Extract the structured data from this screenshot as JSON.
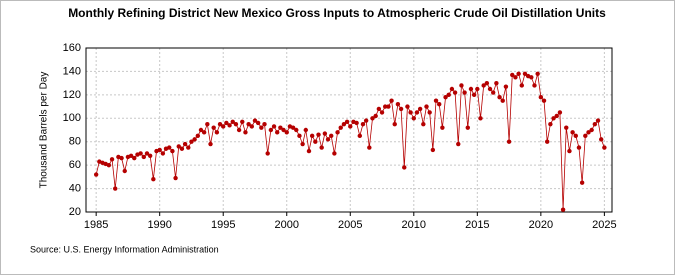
{
  "chart_data": {
    "type": "line",
    "title": "Monthly Refining District New Mexico Gross Inputs to Atmospheric Crude Oil Distillation Units",
    "y_label": "Thousand Barrels per Day",
    "source": "Source: U.S. Energy Information Administration",
    "x": [
      1985,
      1985.25,
      1985.5,
      1985.75,
      1986,
      1986.25,
      1986.5,
      1986.75,
      1987,
      1987.25,
      1987.5,
      1987.75,
      1988,
      1988.25,
      1988.5,
      1988.75,
      1989,
      1989.25,
      1989.5,
      1989.75,
      1990,
      1990.25,
      1990.5,
      1990.75,
      1991,
      1991.25,
      1991.5,
      1991.75,
      1992,
      1992.25,
      1992.5,
      1992.75,
      1993,
      1993.25,
      1993.5,
      1993.75,
      1994,
      1994.25,
      1994.5,
      1994.75,
      1995,
      1995.25,
      1995.5,
      1995.75,
      1996,
      1996.25,
      1996.5,
      1996.75,
      1997,
      1997.25,
      1997.5,
      1997.75,
      1998,
      1998.25,
      1998.5,
      1998.75,
      1999,
      1999.25,
      1999.5,
      1999.75,
      2000,
      2000.25,
      2000.5,
      2000.75,
      2001,
      2001.25,
      2001.5,
      2001.75,
      2002,
      2002.25,
      2002.5,
      2002.75,
      2003,
      2003.25,
      2003.5,
      2003.75,
      2004,
      2004.25,
      2004.5,
      2004.75,
      2005,
      2005.25,
      2005.5,
      2005.75,
      2006,
      2006.25,
      2006.5,
      2006.75,
      2007,
      2007.25,
      2007.5,
      2007.75,
      2008,
      2008.25,
      2008.5,
      2008.75,
      2009,
      2009.25,
      2009.5,
      2009.75,
      2010,
      2010.25,
      2010.5,
      2010.75,
      2011,
      2011.25,
      2011.5,
      2011.75,
      2012,
      2012.25,
      2012.5,
      2012.75,
      2013,
      2013.25,
      2013.5,
      2013.75,
      2014,
      2014.25,
      2014.5,
      2014.75,
      2015,
      2015.25,
      2015.5,
      2015.75,
      2016,
      2016.25,
      2016.5,
      2016.75,
      2017,
      2017.25,
      2017.5,
      2017.75,
      2018,
      2018.25,
      2018.5,
      2018.75,
      2019,
      2019.25,
      2019.5,
      2019.75,
      2020,
      2020.25,
      2020.5,
      2020.75,
      2021,
      2021.25,
      2021.5,
      2021.75,
      2022,
      2022.25,
      2022.5,
      2022.75,
      2023,
      2023.25,
      2023.5,
      2023.75,
      2024,
      2024.25,
      2024.5,
      2024.75,
      2025
    ],
    "series": [
      {
        "name": "New Mexico",
        "color": "#b50000",
        "values": [
          52,
          63,
          62,
          61,
          60,
          65,
          40,
          67,
          66,
          55,
          67,
          68,
          66,
          69,
          70,
          67,
          70,
          68,
          48,
          72,
          73,
          70,
          74,
          75,
          72,
          49,
          76,
          74,
          78,
          75,
          80,
          82,
          85,
          90,
          88,
          95,
          78,
          92,
          88,
          95,
          93,
          96,
          94,
          97,
          95,
          90,
          97,
          88,
          95,
          93,
          98,
          96,
          92,
          95,
          70,
          90,
          93,
          88,
          92,
          90,
          88,
          93,
          92,
          90,
          85,
          78,
          90,
          72,
          85,
          80,
          86,
          75,
          87,
          82,
          85,
          70,
          88,
          92,
          95,
          97,
          93,
          97,
          96,
          85,
          95,
          98,
          75,
          100,
          102,
          108,
          105,
          110,
          110,
          115,
          95,
          112,
          108,
          58,
          110,
          105,
          100,
          105,
          108,
          95,
          110,
          105,
          73,
          115,
          112,
          92,
          118,
          120,
          125,
          122,
          78,
          128,
          122,
          92,
          125,
          120,
          125,
          100,
          128,
          130,
          125,
          122,
          130,
          118,
          115,
          127,
          80,
          137,
          135,
          138,
          128,
          138,
          136,
          135,
          128,
          138,
          118,
          115,
          80,
          95,
          100,
          102,
          105,
          22,
          92,
          72,
          88,
          85,
          75,
          45,
          85,
          88,
          90,
          95,
          98,
          82,
          75
        ]
      }
    ],
    "xlim": [
      1984.2,
      2025.6
    ],
    "xticks": [
      1985,
      1990,
      1995,
      2000,
      2005,
      2010,
      2015,
      2020,
      2025
    ],
    "ylim": [
      20,
      160
    ],
    "yticks": [
      20,
      40,
      60,
      80,
      100,
      120,
      140,
      160
    ],
    "grid": true
  }
}
